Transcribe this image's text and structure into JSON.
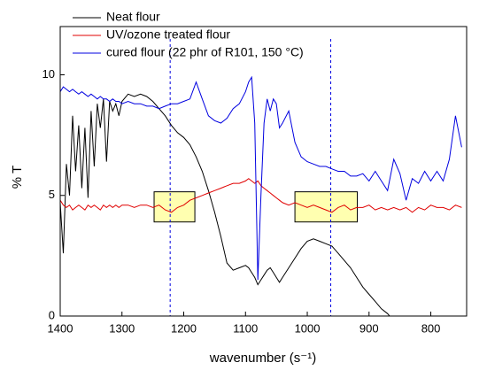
{
  "chart_data": {
    "type": "line",
    "x_label": "wavenumber (s⁻¹)",
    "y_label": "% T",
    "x": [
      1400,
      1395,
      1390,
      1385,
      1380,
      1375,
      1370,
      1365,
      1360,
      1355,
      1350,
      1345,
      1340,
      1335,
      1330,
      1325,
      1320,
      1315,
      1310,
      1305,
      1300,
      1290,
      1280,
      1270,
      1260,
      1250,
      1240,
      1230,
      1220,
      1210,
      1200,
      1190,
      1180,
      1170,
      1160,
      1150,
      1140,
      1130,
      1120,
      1110,
      1100,
      1095,
      1090,
      1085,
      1080,
      1075,
      1070,
      1065,
      1060,
      1055,
      1050,
      1045,
      1040,
      1030,
      1020,
      1010,
      1000,
      990,
      980,
      970,
      960,
      950,
      940,
      930,
      920,
      910,
      900,
      890,
      880,
      870,
      860,
      850,
      840,
      830,
      820,
      810,
      800,
      790,
      780,
      770,
      760,
      750
    ],
    "series": [
      {
        "name": "Neat flour",
        "color": "#000000",
        "values": [
          4.7,
          2.6,
          6.3,
          5.0,
          8.3,
          6.0,
          7.9,
          5.3,
          7.8,
          4.9,
          8.5,
          6.2,
          8.8,
          7.8,
          9.0,
          6.4,
          8.9,
          8.5,
          8.8,
          8.3,
          8.9,
          9.2,
          9.1,
          9.2,
          9.1,
          8.9,
          8.6,
          8.3,
          7.9,
          7.6,
          7.4,
          7.1,
          6.6,
          6.0,
          5.2,
          4.3,
          3.3,
          2.2,
          1.9,
          2.0,
          2.1,
          2.0,
          1.8,
          1.6,
          1.3,
          1.5,
          1.7,
          1.9,
          2.0,
          1.8,
          1.6,
          1.4,
          1.6,
          2.0,
          2.4,
          2.8,
          3.1,
          3.2,
          3.1,
          3.0,
          2.9,
          2.6,
          2.3,
          2.0,
          1.6,
          1.2,
          0.9,
          0.6,
          0.3,
          0.1,
          -0.2,
          null,
          null,
          null,
          null,
          null,
          null,
          null,
          null,
          null,
          null,
          null
        ]
      },
      {
        "name": "UV/ozone treated flour",
        "color": "#e00000",
        "values": [
          4.8,
          4.6,
          4.5,
          4.6,
          4.4,
          4.5,
          4.6,
          4.5,
          4.4,
          4.6,
          4.5,
          4.6,
          4.5,
          4.4,
          4.6,
          4.5,
          4.6,
          4.5,
          4.6,
          4.5,
          4.6,
          4.6,
          4.5,
          4.6,
          4.6,
          4.5,
          4.6,
          4.4,
          4.3,
          4.5,
          4.6,
          4.8,
          4.9,
          5.0,
          5.1,
          5.2,
          5.3,
          5.4,
          5.5,
          5.5,
          5.6,
          5.7,
          5.6,
          5.5,
          5.6,
          5.4,
          5.3,
          5.2,
          5.1,
          5.0,
          4.9,
          4.8,
          4.7,
          4.6,
          4.7,
          4.6,
          4.5,
          4.6,
          4.5,
          4.4,
          4.3,
          4.5,
          4.6,
          4.4,
          4.5,
          4.5,
          4.6,
          4.4,
          4.5,
          4.4,
          4.5,
          4.4,
          4.5,
          4.3,
          4.5,
          4.4,
          4.6,
          4.5,
          4.5,
          4.4,
          4.6,
          4.5
        ]
      },
      {
        "name": "cured flour (22 phr of R101, 150 °C)",
        "color": "#0000e0",
        "values": [
          9.3,
          9.5,
          9.4,
          9.3,
          9.4,
          9.3,
          9.2,
          9.3,
          9.2,
          9.1,
          9.2,
          9.1,
          9.0,
          9.1,
          9.0,
          9.0,
          8.9,
          9.0,
          8.9,
          8.9,
          8.8,
          8.9,
          8.8,
          8.8,
          8.7,
          8.7,
          8.6,
          8.7,
          8.8,
          8.8,
          8.9,
          9.0,
          9.7,
          9.0,
          8.3,
          8.1,
          8.0,
          8.2,
          8.6,
          8.8,
          9.3,
          9.7,
          9.9,
          8.0,
          1.5,
          5.0,
          8.0,
          9.0,
          8.5,
          9.0,
          8.8,
          7.8,
          8.0,
          8.5,
          7.2,
          6.6,
          6.4,
          6.3,
          6.2,
          6.2,
          6.1,
          6.0,
          6.0,
          5.8,
          5.8,
          5.9,
          5.6,
          6.0,
          5.6,
          5.2,
          6.5,
          5.9,
          4.8,
          5.7,
          5.5,
          6.0,
          5.6,
          6.0,
          5.6,
          6.5,
          8.3,
          7.0
        ]
      }
    ],
    "xlim": [
      1400,
      742
    ],
    "xticks": [
      1400,
      1300,
      1200,
      1100,
      1000,
      900,
      800
    ],
    "ylim": [
      0,
      12
    ],
    "yticks": [
      0,
      5,
      10
    ],
    "reference_lines": [
      1222,
      962
    ],
    "highlight_boxes": [
      {
        "x": [
          1248,
          1182
        ],
        "y": [
          3.9,
          5.15
        ]
      },
      {
        "x": [
          1020,
          919
        ],
        "y": [
          3.9,
          5.15
        ]
      }
    ],
    "legend": "top-left"
  }
}
